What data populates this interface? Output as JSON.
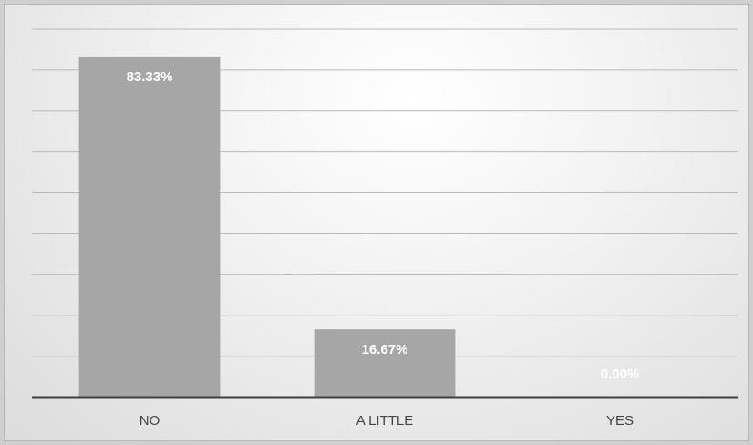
{
  "chart_data": {
    "type": "bar",
    "categories": [
      "NO",
      "A LITTLE",
      "YES"
    ],
    "values": [
      83.33,
      16.67,
      0.0
    ],
    "data_labels": [
      "83.33%",
      "16.67%",
      "0.00%"
    ],
    "ylim": [
      0,
      90
    ],
    "grid": true,
    "colors": {
      "bar": "#a6a6a6",
      "axis": "#3f3f3f",
      "grid": "#b9b9b9",
      "label": "#ffffff"
    }
  }
}
